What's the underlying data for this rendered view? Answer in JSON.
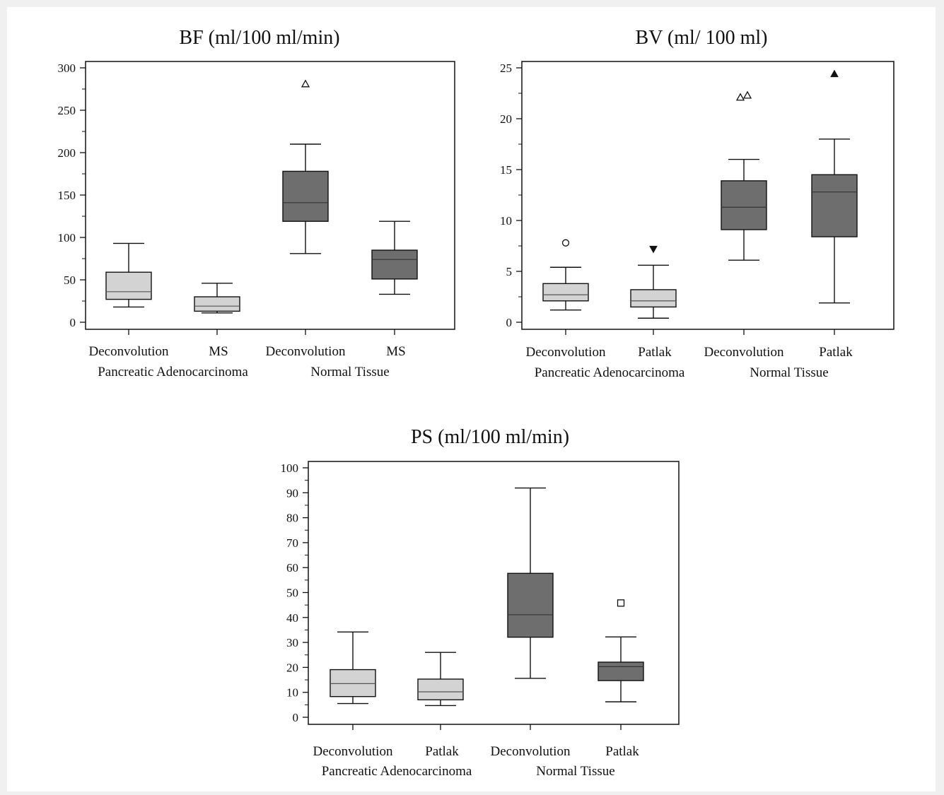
{
  "chart_data": [
    {
      "type": "box",
      "title": "BF (ml/100 ml/min)",
      "ylim": [
        0,
        300
      ],
      "yticks": [
        0,
        50,
        100,
        150,
        200,
        250,
        300
      ],
      "categories": [
        "Deconvolution",
        "MS",
        "Deconvolution",
        "MS"
      ],
      "groups": [
        {
          "label": "Pancreatic Adenocarcinoma",
          "span": [
            0,
            1
          ]
        },
        {
          "label": "Normal Tissue",
          "span": [
            2,
            3
          ]
        }
      ],
      "boxes": [
        {
          "min": 18,
          "q1": 27,
          "median": 36,
          "q3": 59,
          "max": 93,
          "color": "#d3d3d3",
          "outliers": []
        },
        {
          "min": 11,
          "q1": 13,
          "median": 19,
          "q3": 30,
          "max": 46,
          "color": "#d3d3d3",
          "outliers": []
        },
        {
          "min": 81,
          "q1": 119,
          "median": 141,
          "q3": 178,
          "max": 210,
          "color": "#6e6e6e",
          "outliers": [
            {
              "y": 281,
              "marker": "triangle-open"
            }
          ]
        },
        {
          "min": 33,
          "q1": 51,
          "median": 74,
          "q3": 85,
          "max": 119,
          "color": "#6e6e6e",
          "outliers": []
        }
      ]
    },
    {
      "type": "box",
      "title": "BV (ml/ 100 ml)",
      "ylim": [
        0,
        25
      ],
      "yticks": [
        0,
        5,
        10,
        15,
        20,
        25
      ],
      "categories": [
        "Deconvolution",
        "Patlak",
        "Deconvolution",
        "Patlak"
      ],
      "groups": [
        {
          "label": "Pancreatic Adenocarcinoma",
          "span": [
            0,
            1
          ]
        },
        {
          "label": "Normal Tissue",
          "span": [
            2,
            3
          ]
        }
      ],
      "boxes": [
        {
          "min": 1.2,
          "q1": 2.1,
          "median": 2.7,
          "q3": 3.8,
          "max": 5.4,
          "color": "#d3d3d3",
          "outliers": [
            {
              "y": 7.8,
              "marker": "circle-open"
            }
          ]
        },
        {
          "min": 0.4,
          "q1": 1.5,
          "median": 2.1,
          "q3": 3.2,
          "max": 5.6,
          "color": "#d3d3d3",
          "outliers": [
            {
              "y": 7.2,
              "marker": "triangle-down-filled"
            }
          ]
        },
        {
          "min": 6.1,
          "q1": 9.1,
          "median": 11.3,
          "q3": 13.9,
          "max": 16.0,
          "color": "#6e6e6e",
          "outliers": [
            {
              "y": 22.1,
              "marker": "triangle-open",
              "dx": -5
            },
            {
              "y": 22.3,
              "marker": "triangle-open",
              "dx": 5
            }
          ]
        },
        {
          "min": 1.9,
          "q1": 8.4,
          "median": 12.8,
          "q3": 14.5,
          "max": 18.0,
          "color": "#6e6e6e",
          "outliers": [
            {
              "y": 24.4,
              "marker": "triangle-filled"
            }
          ]
        }
      ]
    },
    {
      "type": "box",
      "title": "PS (ml/100 ml/min)",
      "ylim": [
        0,
        100
      ],
      "yticks": [
        0,
        10,
        20,
        30,
        40,
        50,
        60,
        70,
        80,
        90,
        100
      ],
      "categories": [
        "Deconvolution",
        "Patlak",
        "Deconvolution",
        "Patlak"
      ],
      "groups": [
        {
          "label": "Pancreatic Adenocarcinoma",
          "span": [
            0,
            1
          ]
        },
        {
          "label": "Normal Tissue",
          "span": [
            2,
            3
          ]
        }
      ],
      "boxes": [
        {
          "min": 5.5,
          "q1": 8.3,
          "median": 13.5,
          "q3": 19.1,
          "max": 34.2,
          "color": "#d3d3d3",
          "outliers": []
        },
        {
          "min": 4.7,
          "q1": 7.0,
          "median": 10.2,
          "q3": 15.3,
          "max": 26.0,
          "color": "#d3d3d3",
          "outliers": []
        },
        {
          "min": 15.6,
          "q1": 32.1,
          "median": 41.1,
          "q3": 57.7,
          "max": 91.9,
          "color": "#6e6e6e",
          "outliers": []
        },
        {
          "min": 6.2,
          "q1": 14.7,
          "median": 20.3,
          "q3": 22.1,
          "max": 32.2,
          "color": "#6e6e6e",
          "outliers": [
            {
              "y": 45.8,
              "marker": "square-open"
            }
          ]
        }
      ]
    }
  ]
}
